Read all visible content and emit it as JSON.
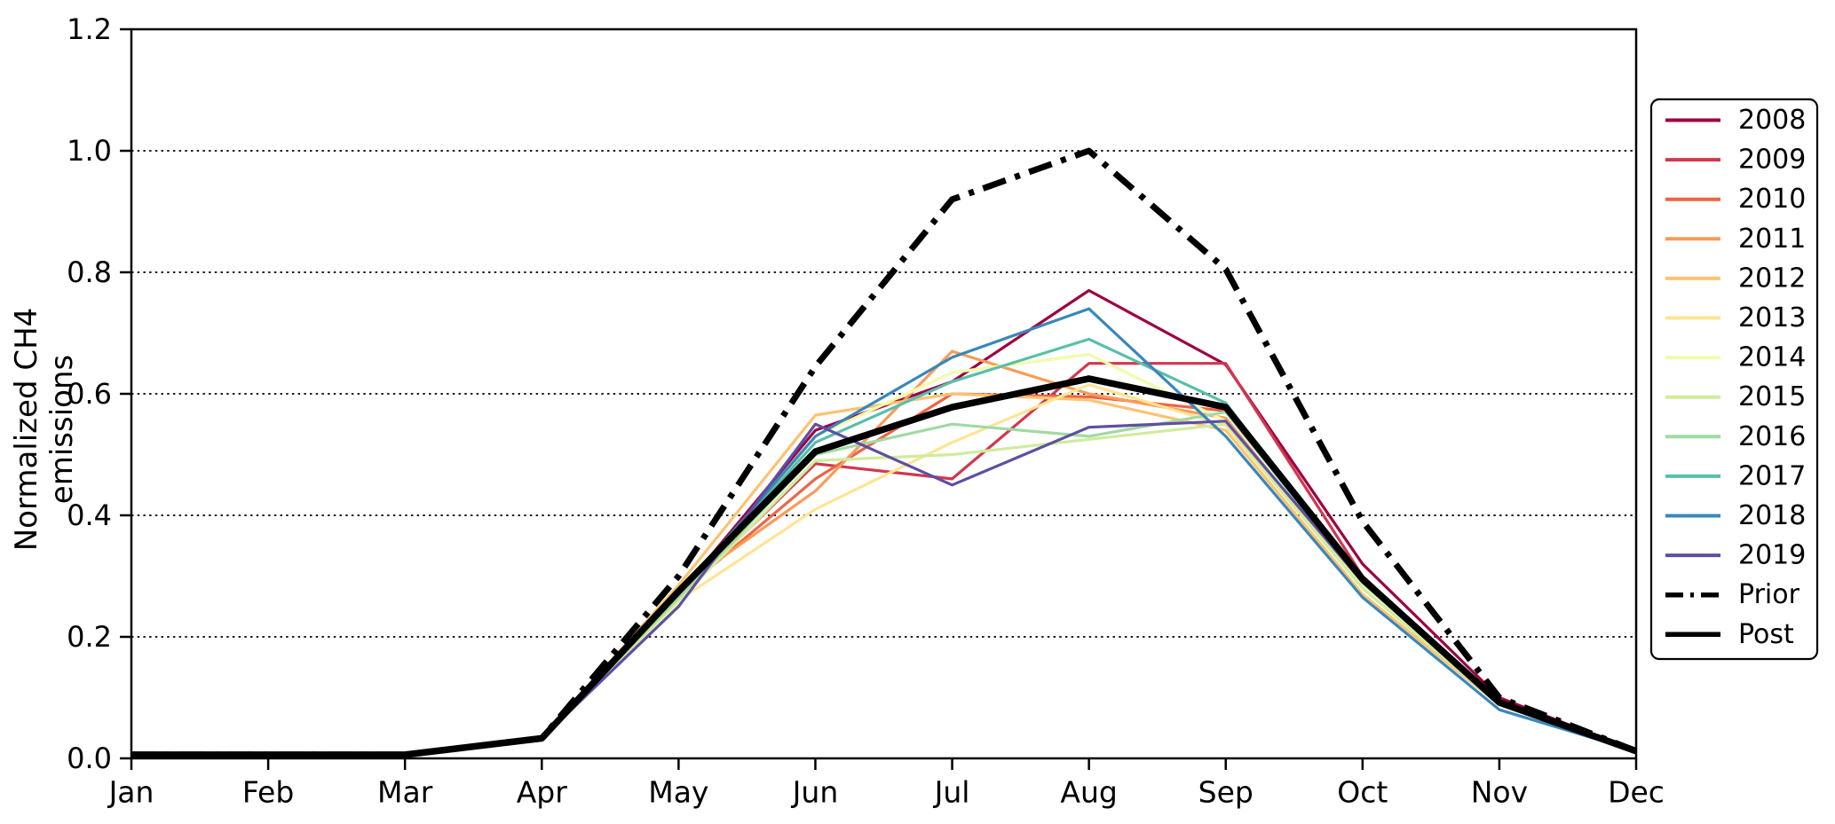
{
  "figure": {
    "background": "#ffffff"
  },
  "chart_data": {
    "type": "line",
    "title": "",
    "xlabel": "",
    "ylabel": "Normalized CH4 emissions",
    "x_categories": [
      "Jan",
      "Feb",
      "Mar",
      "Apr",
      "May",
      "Jun",
      "Jul",
      "Aug",
      "Sep",
      "Oct",
      "Nov",
      "Dec"
    ],
    "ylim": [
      0.0,
      1.2
    ],
    "yticks": [
      0.0,
      0.2,
      0.4,
      0.6,
      0.8,
      1.0,
      1.2
    ],
    "ytick_labels": [
      "0.0",
      "0.2",
      "0.4",
      "0.6",
      "0.8",
      "1.0",
      "1.2"
    ],
    "grid": "horizontal dotted black at each y tick",
    "legend_position": "outside-right-top",
    "legend_entries": [
      "2008",
      "2009",
      "2010",
      "2011",
      "2012",
      "2013",
      "2014",
      "2015",
      "2016",
      "2017",
      "2018",
      "2019",
      "Prior",
      "Post"
    ],
    "series": [
      {
        "name": "2008",
        "color": "#9e0142",
        "style": "solid",
        "width": 3.2,
        "values": [
          0.006,
          0.006,
          0.006,
          0.033,
          0.27,
          0.54,
          0.62,
          0.77,
          0.648,
          0.32,
          0.1,
          0.012
        ]
      },
      {
        "name": "2009",
        "color": "#d0384e",
        "style": "solid",
        "width": 3.2,
        "values": [
          0.006,
          0.006,
          0.006,
          0.033,
          0.265,
          0.485,
          0.46,
          0.65,
          0.65,
          0.3,
          0.092,
          0.012
        ]
      },
      {
        "name": "2010",
        "color": "#ee6445",
        "style": "solid",
        "width": 3.2,
        "values": [
          0.006,
          0.006,
          0.006,
          0.033,
          0.27,
          0.46,
          0.6,
          0.595,
          0.572,
          0.3,
          0.09,
          0.012
        ]
      },
      {
        "name": "2011",
        "color": "#fa9b58",
        "style": "solid",
        "width": 3.2,
        "values": [
          0.006,
          0.006,
          0.006,
          0.033,
          0.28,
          0.44,
          0.67,
          0.6,
          0.56,
          0.28,
          0.09,
          0.012
        ]
      },
      {
        "name": "2012",
        "color": "#fdc370",
        "style": "solid",
        "width": 3.2,
        "values": [
          0.006,
          0.006,
          0.006,
          0.033,
          0.285,
          0.565,
          0.6,
          0.59,
          0.54,
          0.27,
          0.088,
          0.012
        ]
      },
      {
        "name": "2013",
        "color": "#fee593",
        "style": "solid",
        "width": 3.2,
        "values": [
          0.006,
          0.006,
          0.006,
          0.033,
          0.26,
          0.41,
          0.52,
          0.615,
          0.548,
          0.28,
          0.09,
          0.012
        ]
      },
      {
        "name": "2014",
        "color": "#f3faad",
        "style": "solid",
        "width": 3.2,
        "values": [
          0.006,
          0.006,
          0.006,
          0.033,
          0.255,
          0.53,
          0.635,
          0.665,
          0.555,
          0.285,
          0.09,
          0.012
        ]
      },
      {
        "name": "2015",
        "color": "#d0ec9c",
        "style": "solid",
        "width": 3.2,
        "values": [
          0.006,
          0.006,
          0.006,
          0.033,
          0.26,
          0.49,
          0.5,
          0.525,
          0.55,
          0.28,
          0.088,
          0.012
        ]
      },
      {
        "name": "2016",
        "color": "#a2d9a4",
        "style": "solid",
        "width": 3.2,
        "values": [
          0.006,
          0.006,
          0.006,
          0.033,
          0.265,
          0.5,
          0.55,
          0.53,
          0.57,
          0.29,
          0.09,
          0.012
        ]
      },
      {
        "name": "2017",
        "color": "#58bfa9",
        "style": "solid",
        "width": 3.2,
        "values": [
          0.006,
          0.006,
          0.006,
          0.033,
          0.27,
          0.52,
          0.62,
          0.69,
          0.585,
          0.29,
          0.09,
          0.012
        ]
      },
      {
        "name": "2018",
        "color": "#3987bb",
        "style": "solid",
        "width": 3.2,
        "values": [
          0.006,
          0.006,
          0.006,
          0.033,
          0.27,
          0.53,
          0.66,
          0.74,
          0.53,
          0.265,
          0.08,
          0.012
        ]
      },
      {
        "name": "2019",
        "color": "#5e4fa2",
        "style": "solid",
        "width": 3.2,
        "values": [
          0.006,
          0.006,
          0.006,
          0.033,
          0.25,
          0.55,
          0.45,
          0.545,
          0.555,
          0.29,
          0.09,
          0.012
        ]
      },
      {
        "name": "Prior",
        "color": "#000000",
        "style": "dashdot",
        "width": 7.0,
        "values": [
          0.006,
          0.006,
          0.006,
          0.033,
          0.3,
          0.645,
          0.92,
          1.0,
          0.805,
          0.39,
          0.1,
          0.012
        ]
      },
      {
        "name": "Post",
        "color": "#000000",
        "style": "solid",
        "width": 7.5,
        "values": [
          0.006,
          0.006,
          0.006,
          0.033,
          0.275,
          0.505,
          0.578,
          0.625,
          0.578,
          0.295,
          0.092,
          0.012
        ]
      }
    ]
  }
}
